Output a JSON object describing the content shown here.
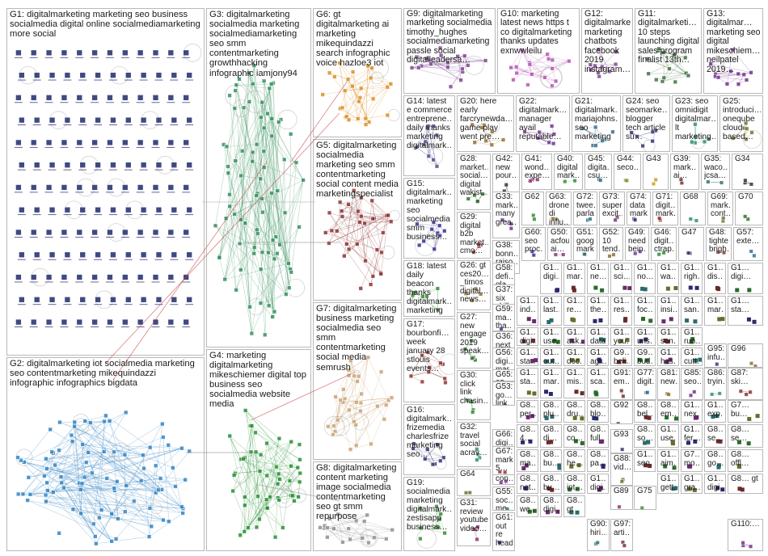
{
  "groups": [
    {
      "id": "G1",
      "label": "G1: digitalmarketing marketing seo business socialmedia digital online socialmediamarketing more social",
      "color": "#1f2a6b"
    },
    {
      "id": "G2",
      "label": "G2: digitalmarketing iot socialmedia marketing seo contentmarketing mikequindazzi infographic infographics bigdata",
      "color": "#2a7fc0"
    },
    {
      "id": "G3",
      "label": "G3: digitalmarketing socialmedia marketing socialmediamarketing seo smm contentmarketing growthhacking infographic iamjony94",
      "color": "#2e8b57"
    },
    {
      "id": "G4",
      "label": "G4: marketing digitalmarketing mikeschiemer digital top business seo socialmedia website media",
      "color": "#1e8c2a"
    },
    {
      "id": "G5",
      "label": "G5: digitalmarketing socialmedia marketing seo smm contentmarketing social content media marketingspecialist",
      "color": "#8a2a2a"
    },
    {
      "id": "G6",
      "label": "G6: gt digitalmarketing ai marketing mikequindazzi search infographic voice hazloe3 iot",
      "color": "#d98b1c"
    },
    {
      "id": "G7",
      "label": "G7: digitalmarketing business marketing socialmedia seo smm contentmarketing social media semrush",
      "color": "#c8a070"
    },
    {
      "id": "G8",
      "label": "G8: digitalmarketing content marketing image socialmedia contentmarketing seo gt smm repurpose",
      "color": "#8c8c8c"
    },
    {
      "id": "G9",
      "label": "G9: digitalmarketing marketing socialmedia timothy_hughes socialmediamarketing passle social digitalleadersa…",
      "color": "#7a3d8f"
    },
    {
      "id": "G10",
      "label": "G10: marketing latest news https t co digitalmarketing thanks updates exnwwleilu",
      "color": "#b04fb0"
    },
    {
      "id": "G12",
      "label": "G12: digitalmarketi… marketing chatbots facebook 2019 instagram…",
      "color": "#7a3d8f"
    },
    {
      "id": "G11",
      "label": "G11: digitalmarketi… 10 steps launching digital sales program finalist 13th…",
      "color": "#3a6b3a"
    },
    {
      "id": "G13",
      "label": "G13: digitalmar… marketing seo digital mikeschiem… neilpatel 2019…",
      "color": "#6b2a8a"
    },
    {
      "id": "G14",
      "label": "G14: latest e commerce entreprene… daily thanks marketing digitalmark…",
      "color": "#4a4a8a"
    },
    {
      "id": "G20",
      "label": "G20: here early farcrynewda… game play went pre…",
      "color": "#8a6b2a"
    },
    {
      "id": "G22",
      "label": "G22: digitalmark… manager avail reputable…",
      "color": "#6b2a8a"
    },
    {
      "id": "G21",
      "label": "G21: digitalmark… mariajohns… seo marketing",
      "color": "#2a6b8a"
    },
    {
      "id": "G24",
      "label": "G24: seo seomarke… blogger tech article su…",
      "color": "#2a2a6b"
    },
    {
      "id": "G23",
      "label": "G23: seo omnidigit digitalmar… lt marketing…",
      "color": "#2a8a6b"
    },
    {
      "id": "G25",
      "label": "G25: introduci… oneqube cloud based…",
      "color": "#6b6b2a"
    },
    {
      "id": "G15",
      "label": "G15: digitalmark… marketing seo socialmedia smm business…",
      "color": "#2a2a8a"
    },
    {
      "id": "G28",
      "label": "G28: market… social… digital wakist…",
      "color": "#2a6b2a"
    },
    {
      "id": "G42",
      "label": "G42: new pour…",
      "color": "#2a2a2a"
    },
    {
      "id": "G41",
      "label": "G41: wond… expe…",
      "color": "#8a2a6b"
    },
    {
      "id": "G40",
      "label": "G40: digital mark…",
      "color": "#2a8a2a"
    },
    {
      "id": "G45",
      "label": "G45: digita… csu…",
      "color": "#2a6b8a"
    },
    {
      "id": "G44",
      "label": "G44: seco…",
      "color": "#8a8a2a"
    },
    {
      "id": "G43",
      "label": "G43",
      "color": "#c89a1c"
    },
    {
      "id": "G39",
      "label": "G39: mark… ai…",
      "color": "#6b2a2a"
    },
    {
      "id": "G35",
      "label": "G35: waco… jcsa…",
      "color": "#2a6b6b"
    },
    {
      "id": "G34",
      "label": "G34",
      "color": "#2a2a2a"
    },
    {
      "id": "G29",
      "label": "G29: digital b2b market… cmo…",
      "color": "#8a2a2a"
    },
    {
      "id": "G33",
      "label": "G33: mark… many grea…",
      "color": "#6b2a8a"
    },
    {
      "id": "G62",
      "label": "G62",
      "color": "#2a8a2a"
    },
    {
      "id": "G63",
      "label": "G63: drone di influ…",
      "color": "#8a6b2a"
    },
    {
      "id": "G72",
      "label": "G72: twee… parla…",
      "color": "#2a6b8a"
    },
    {
      "id": "G73",
      "label": "G73: super excit…",
      "color": "#6b2a6b"
    },
    {
      "id": "G74",
      "label": "G74: data mark…",
      "color": "#2a2a6b"
    },
    {
      "id": "G71",
      "label": "G71: digit… mark…",
      "color": "#8a2a2a"
    },
    {
      "id": "G68",
      "label": "G68",
      "color": "#2a8a6b"
    },
    {
      "id": "G69",
      "label": "G69: mark… cont…",
      "color": "#6b6b2a"
    },
    {
      "id": "G70",
      "label": "G70",
      "color": "#2a6b2a"
    },
    {
      "id": "G18",
      "label": "G18: latest daily beacon thanks digitalmark… marketing",
      "color": "#2a8a2a"
    },
    {
      "id": "G38",
      "label": "G38: bonn… raiso…",
      "color": "#6b2a2a"
    },
    {
      "id": "G60",
      "label": "G60: seo proc…",
      "color": "#2a2a8a"
    },
    {
      "id": "G50",
      "label": "G50: acfou ai…",
      "color": "#8a2a6b"
    },
    {
      "id": "G51",
      "label": "G51: goog… mark…",
      "color": "#2a6b6b"
    },
    {
      "id": "G52",
      "label": "G52: 10 tend…",
      "color": "#8a6b2a"
    },
    {
      "id": "G49",
      "label": "G49: need bein…",
      "color": "#6b2a8a"
    },
    {
      "id": "G46",
      "label": "G46: digit… ctrap…",
      "color": "#2a8a2a"
    },
    {
      "id": "G47",
      "label": "G47",
      "color": "#2a2a6b"
    },
    {
      "id": "G48",
      "label": "G48: tighte brigh…",
      "color": "#8a2a2a"
    },
    {
      "id": "G57",
      "label": "G57: exte…",
      "color": "#2a6b8a"
    },
    {
      "id": "G26",
      "label": "G26: gt ces20… _timos digital… news…",
      "color": "#8a6b2a"
    },
    {
      "id": "G58",
      "label": "G58: defi… gla…",
      "color": "#6b2a6b"
    },
    {
      "id": "G37",
      "label": "G37: six skills digit…",
      "color": "#2a8a6b"
    },
    {
      "id": "G17",
      "label": "G17: bourbonfi… week january 28 stlouis events…",
      "color": "#8a2a2a"
    },
    {
      "id": "G59",
      "label": "G59: ma… tha…",
      "color": "#2a2a8a"
    },
    {
      "id": "G36",
      "label": "G36: next fanta… even…",
      "color": "#6b6b2a"
    },
    {
      "id": "G27",
      "label": "G27: new engage 2019 speak…",
      "color": "#2a6b2a"
    },
    {
      "id": "G56",
      "label": "G56: digi… mar…",
      "color": "#8a2a6b"
    },
    {
      "id": "G65",
      "label": "G65: 25 way…",
      "color": "#2a6b8a"
    },
    {
      "id": "G53",
      "label": "G53: go… link…",
      "color": "#6b2a2a"
    },
    {
      "id": "G30",
      "label": "G30: click link chasin…",
      "color": "#2a8a2a"
    },
    {
      "id": "G66",
      "label": "G66: digi… gravi…",
      "color": "#8a6b2a"
    },
    {
      "id": "G16",
      "label": "G16: digitalmark… frizemedia charlesfrize marketing seo…",
      "color": "#2a2a6b"
    },
    {
      "id": "G54",
      "label": "G54: digi… con… trai…",
      "color": "#6b2a8a"
    },
    {
      "id": "G32",
      "label": "G32: travel social acrav…",
      "color": "#2a8a6b"
    },
    {
      "id": "G67",
      "label": "G67: mark… 5…",
      "color": "#8a2a2a"
    },
    {
      "id": "G55",
      "label": "G55: soc… me…",
      "color": "#2a6b6b"
    },
    {
      "id": "G64",
      "label": "G64",
      "color": "#6b6b2a"
    },
    {
      "id": "G19",
      "label": "G19: socialmedia marketing digitalmark… zestisapp business…",
      "color": "#2a8a2a"
    },
    {
      "id": "G31",
      "label": "G31: review youtube video…",
      "color": "#8a2a6b"
    },
    {
      "id": "G61",
      "label": "G61: out re head…",
      "color": "#2a2a8a"
    },
    {
      "id": "G91",
      "label": "G91: em…",
      "color": "#6b2a2a"
    },
    {
      "id": "G77",
      "label": "G77: digit…",
      "color": "#2a6b8a"
    },
    {
      "id": "G81",
      "label": "G81: new…",
      "color": "#8a6b2a"
    },
    {
      "id": "G85",
      "label": "G85: seo…",
      "color": "#6b2a8a"
    },
    {
      "id": "G86",
      "label": "G86: tryin…",
      "color": "#2a8a6b"
    },
    {
      "id": "G87",
      "label": "G87: ski…",
      "color": "#8a2a2a"
    },
    {
      "id": "G92",
      "label": "G92",
      "color": "#2a6b2a"
    },
    {
      "id": "G93",
      "label": "G93",
      "color": "#2a2a6b"
    },
    {
      "id": "G88",
      "label": "G88: vid…",
      "color": "#6b6b2a"
    },
    {
      "id": "G89",
      "label": "G89",
      "color": "#8a2a6b"
    },
    {
      "id": "G75",
      "label": "G75",
      "color": "#2a8a2a"
    },
    {
      "id": "G90",
      "label": "G90: hiri…",
      "color": "#2a6b6b"
    },
    {
      "id": "G97",
      "label": "G97: arti…",
      "color": "#6b2a2a"
    },
    {
      "id": "G95",
      "label": "G95: infu…",
      "color": "#2a2a8a"
    },
    {
      "id": "G96",
      "label": "G96",
      "color": "#8a6b2a"
    },
    {
      "id": "G110",
      "label": "G110:…",
      "color": "#6b2a8a"
    }
  ],
  "small_labels": [
    {
      "text": "G1… digi…"
    },
    {
      "text": "G1… mar…"
    },
    {
      "text": "G1… ne…"
    },
    {
      "text": "G1… sci…"
    },
    {
      "text": "G1… no…"
    },
    {
      "text": "G1… wa…"
    },
    {
      "text": "G1… righ…"
    },
    {
      "text": "G1… dis…"
    },
    {
      "text": "G1… digi…"
    },
    {
      "text": "G1… ind…"
    },
    {
      "text": "G1… last…"
    },
    {
      "text": "G1… re…"
    },
    {
      "text": "G1… the…"
    },
    {
      "text": "G1… res…"
    },
    {
      "text": "G1… foc…"
    },
    {
      "text": "G1… insi…"
    },
    {
      "text": "G1… san…"
    },
    {
      "text": "G1… mar…"
    },
    {
      "text": "G1… sta…"
    },
    {
      "text": "G1… digi…"
    },
    {
      "text": "G1… use…"
    },
    {
      "text": "G1… ask…"
    },
    {
      "text": "G1… data"
    },
    {
      "text": "G1… you…"
    },
    {
      "text": "G1… uns…"
    },
    {
      "text": "G1… son…"
    },
    {
      "text": "G1… run…"
    },
    {
      "text": "G1… sta…"
    },
    {
      "text": "G1… out…"
    },
    {
      "text": "G1… doc…"
    },
    {
      "text": "G1… agr…"
    },
    {
      "text": "G9… beli…"
    },
    {
      "text": "G9… bud…"
    },
    {
      "text": "G1… has…"
    },
    {
      "text": "G1… cutt…"
    },
    {
      "text": "G1… sta…"
    },
    {
      "text": "G1… mar…"
    },
    {
      "text": "G1… mis…"
    },
    {
      "text": "G1… sca…"
    },
    {
      "text": "G8… per…"
    },
    {
      "text": "G8… plu…"
    },
    {
      "text": "G8… dru…"
    },
    {
      "text": "G8… blo…"
    },
    {
      "text": "G8… bel…"
    },
    {
      "text": "G8… em…"
    },
    {
      "text": "G1… nex…"
    },
    {
      "text": "G1… exp…"
    },
    {
      "text": "G7… bu…"
    },
    {
      "text": "G8… 4…"
    },
    {
      "text": "G8… di…"
    },
    {
      "text": "G8… co…"
    },
    {
      "text": "G8… full"
    },
    {
      "text": "G8… so…"
    },
    {
      "text": "G1… use…"
    },
    {
      "text": "G1… fer…"
    },
    {
      "text": "G8… se…"
    },
    {
      "text": "G8… se…"
    },
    {
      "text": "G8… ma…"
    },
    {
      "text": "G8… bu…"
    },
    {
      "text": "G8… he…"
    },
    {
      "text": "G8… pa…"
    },
    {
      "text": "G1… seo…"
    },
    {
      "text": "G1… aim…"
    },
    {
      "text": "G7… mo…"
    },
    {
      "text": "G8… go…"
    },
    {
      "text": "G8… offl…"
    },
    {
      "text": "G8… net…"
    },
    {
      "text": "G8… bu…"
    },
    {
      "text": "G8… int…"
    },
    {
      "text": "G1… digi…"
    },
    {
      "text": "G1… gett…"
    },
    {
      "text": "G1… gra…"
    },
    {
      "text": "G1… digi…"
    },
    {
      "text": "G8… gt"
    },
    {
      "text": "G8… we…"
    },
    {
      "text": "G8… digi…"
    },
    {
      "text": "G8… gt"
    }
  ]
}
